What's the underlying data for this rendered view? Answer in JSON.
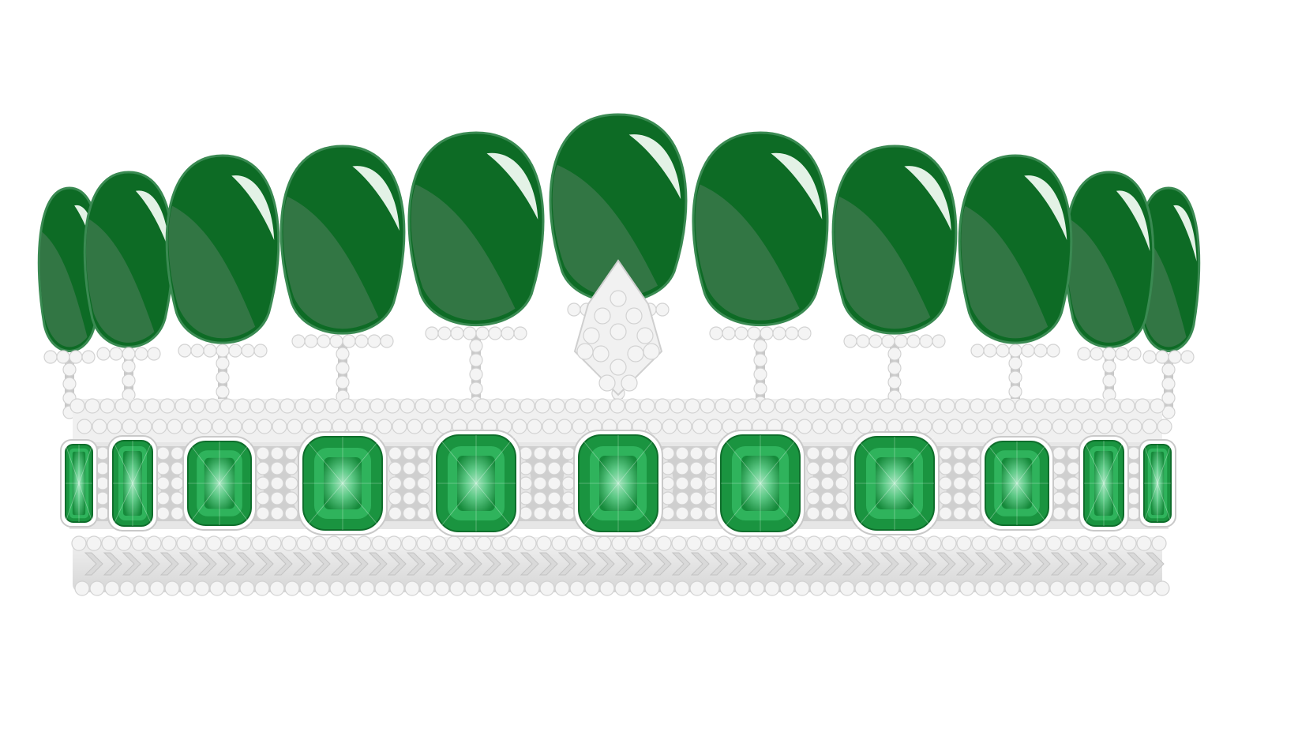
{
  "illustration": {
    "subject": "emerald-and-diamond-tiara",
    "palette": {
      "background": "#ffffff",
      "cabochon_dark": "#0d6b25",
      "cabochon_rim": "#3a8a52",
      "cabochon_highlight": "#e3f2e6",
      "cabochon_sheen": "#3f7a4f",
      "emerald_cut_outer": "#1a9440",
      "emerald_cut_mid": "#2fb35c",
      "emerald_cut_table": "#7fd6a0",
      "metal": "#c8c8c8",
      "metal_dark": "#a9a9a9",
      "pearl": "#f4f4f4",
      "pearl_edge": "#d2d2d2"
    },
    "cabochon_count": 11,
    "cushion_emerald_count": 11
  }
}
